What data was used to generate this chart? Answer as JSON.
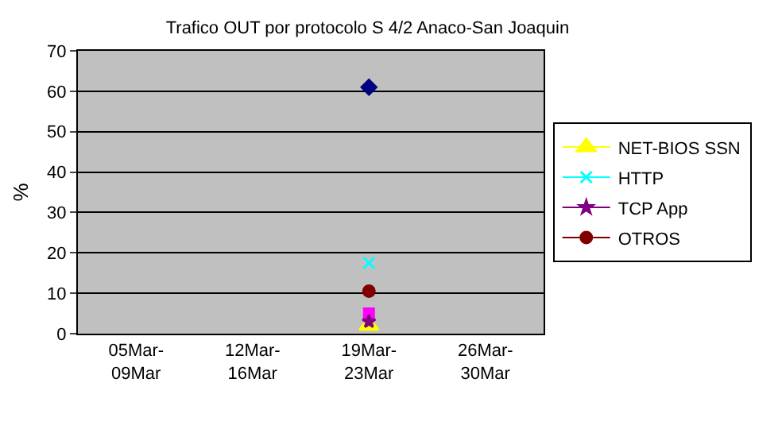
{
  "chart_data": {
    "type": "line",
    "title": "Trafico OUT por protocolo S 4/2 Anaco-San Joaquin",
    "ylabel": "%",
    "categories": [
      "05Mar-09Mar",
      "12Mar-16Mar",
      "19Mar-23Mar",
      "26Mar-30Mar"
    ],
    "series": [
      {
        "color": "#000080",
        "marker": "diamond",
        "values": [
          null,
          null,
          61,
          null
        ]
      },
      {
        "color": "#ff00ff",
        "marker": "square",
        "values": [
          null,
          null,
          5,
          null
        ]
      },
      {
        "name": "NET-BIOS SSN",
        "color": "#ffff00",
        "marker": "triangle",
        "values": [
          null,
          null,
          2,
          null
        ]
      },
      {
        "name": "HTTP",
        "color": "#00ffff",
        "marker": "cross",
        "values": [
          null,
          null,
          17.5,
          null
        ]
      },
      {
        "name": "TCP App",
        "color": "#800080",
        "marker": "star",
        "values": [
          null,
          null,
          3,
          null
        ]
      },
      {
        "name": "OTROS",
        "color": "#800000",
        "marker": "circle",
        "values": [
          null,
          null,
          10.5,
          null
        ]
      }
    ],
    "ylim": [
      0,
      70
    ],
    "yticks": [
      0,
      10,
      20,
      30,
      40,
      50,
      60,
      70
    ],
    "grid": "y",
    "legend": "right"
  }
}
